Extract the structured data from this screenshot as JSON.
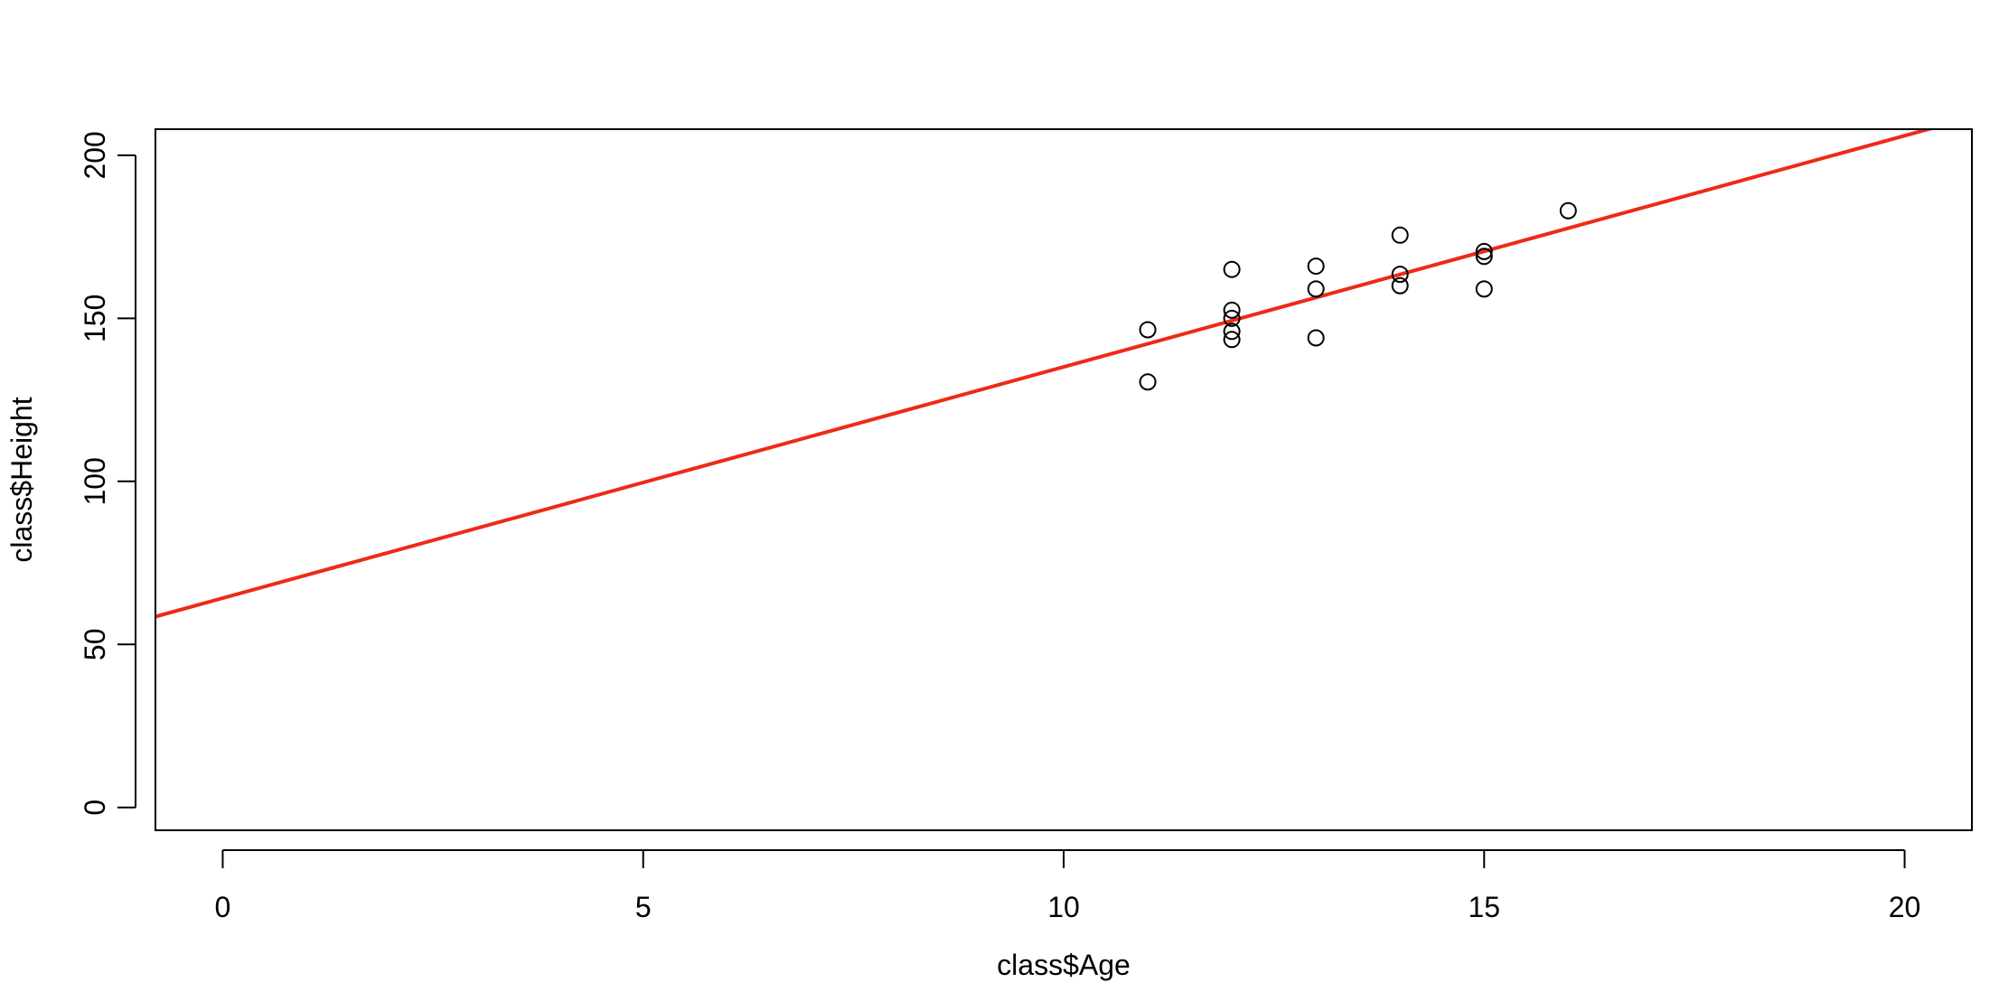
{
  "chart_data": {
    "type": "scatter",
    "title": "",
    "xlabel": "class$Age",
    "ylabel": "class$Height",
    "xlim": [
      -0.8,
      20.8
    ],
    "ylim": [
      -7,
      208
    ],
    "x_ticks": [
      0,
      5,
      10,
      15,
      20
    ],
    "y_ticks": [
      0,
      50,
      100,
      150,
      200
    ],
    "x_tick_labels": [
      "0",
      "5",
      "10",
      "15",
      "20"
    ],
    "y_tick_labels": [
      "0",
      "50",
      "100",
      "150",
      "200"
    ],
    "grid": false,
    "legend": "none",
    "point_color": "#000000",
    "points": [
      {
        "x": 11,
        "y": 146.5
      },
      {
        "x": 11,
        "y": 130.5
      },
      {
        "x": 12,
        "y": 165
      },
      {
        "x": 12,
        "y": 152.5
      },
      {
        "x": 12,
        "y": 150
      },
      {
        "x": 12,
        "y": 146
      },
      {
        "x": 12,
        "y": 143.5
      },
      {
        "x": 13,
        "y": 166
      },
      {
        "x": 13,
        "y": 159
      },
      {
        "x": 13,
        "y": 144
      },
      {
        "x": 14,
        "y": 175.5
      },
      {
        "x": 14,
        "y": 163.5
      },
      {
        "x": 14,
        "y": 160
      },
      {
        "x": 15,
        "y": 170.5
      },
      {
        "x": 15,
        "y": 169
      },
      {
        "x": 15,
        "y": 159
      },
      {
        "x": 16,
        "y": 183
      }
    ],
    "fit_line": {
      "type": "line",
      "color": "#ee2a16",
      "intercept": 64.2,
      "slope": 7.09
    }
  }
}
